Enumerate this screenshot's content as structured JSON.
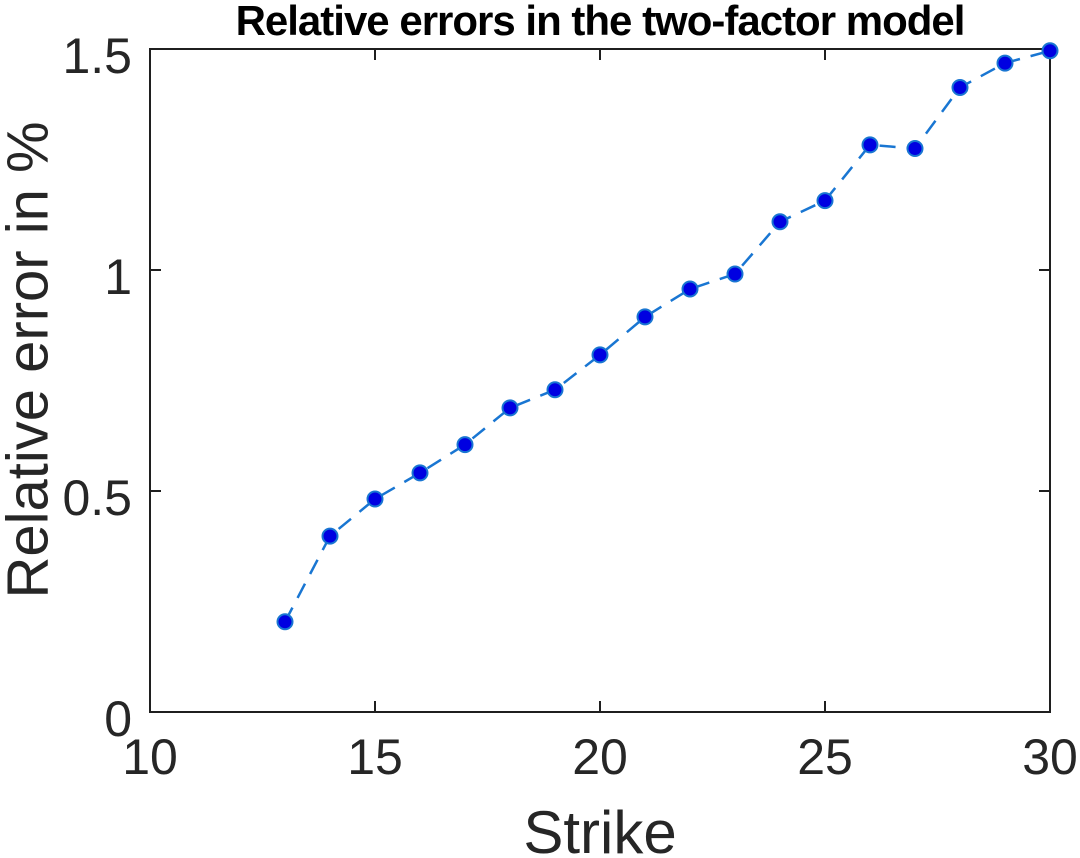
{
  "chart_data": {
    "type": "line",
    "title": "Relative errors in the two-factor model",
    "xlabel": "Strike",
    "ylabel": "Relative error in %",
    "x": [
      13,
      14,
      15,
      16,
      17,
      18,
      19,
      20,
      21,
      22,
      23,
      24,
      25,
      26,
      27,
      28,
      29,
      30
    ],
    "series": [
      {
        "name": "relative-error",
        "values": [
          0.204,
          0.398,
          0.482,
          0.541,
          0.605,
          0.688,
          0.729,
          0.808,
          0.894,
          0.957,
          0.991,
          1.109,
          1.157,
          1.283,
          1.275,
          1.413,
          1.468,
          1.496
        ]
      }
    ],
    "xlim": [
      10,
      30
    ],
    "ylim": [
      0,
      1.5
    ],
    "x_ticks": [
      10,
      15,
      20,
      25,
      30
    ],
    "y_ticks": [
      0,
      0.5,
      1,
      1.5
    ],
    "grid": "off",
    "legend": "none",
    "line_style": "dashed",
    "marker": "filled-circle",
    "colors": {
      "line": "#1976d2",
      "marker_fill": "#0000e1",
      "marker_edge": "#1976d2",
      "axis": "#1f1f1f",
      "tick_text": "#262626",
      "title_text": "#000000"
    }
  }
}
